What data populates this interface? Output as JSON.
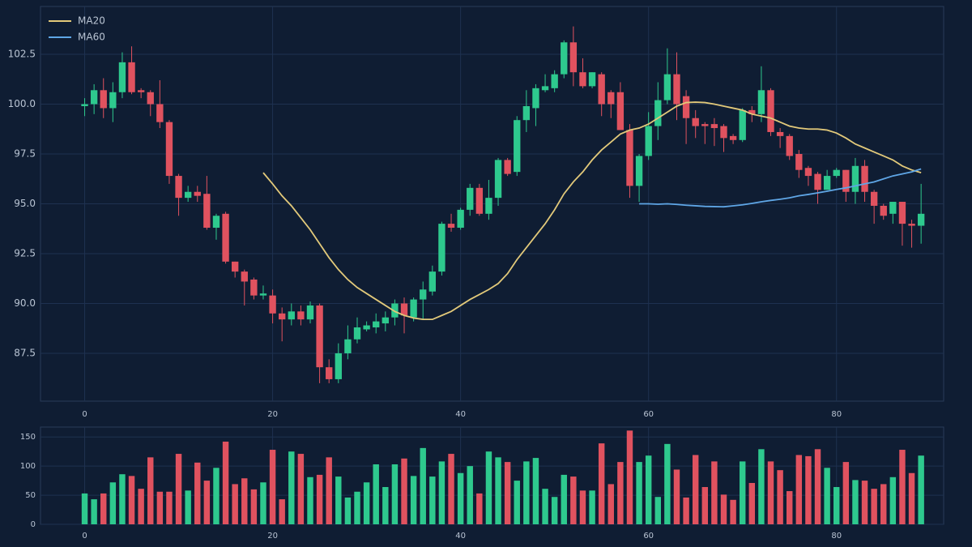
{
  "chart_data": {
    "type": "candlestick",
    "up_color": "#2ec98e",
    "down_color": "#e0525f",
    "grid": true,
    "legend": "upper left",
    "x": [
      0,
      1,
      2,
      3,
      4,
      5,
      6,
      7,
      8,
      9,
      10,
      11,
      12,
      13,
      14,
      15,
      16,
      17,
      18,
      19,
      20,
      21,
      22,
      23,
      24,
      25,
      26,
      27,
      28,
      29,
      30,
      31,
      32,
      33,
      34,
      35,
      36,
      37,
      38,
      39,
      40,
      41,
      42,
      43,
      44,
      45,
      46,
      47,
      48,
      49,
      50,
      51,
      52,
      53,
      54,
      55,
      56,
      57,
      58,
      59,
      60,
      61,
      62,
      63,
      64,
      65,
      66,
      67,
      68,
      69,
      70,
      71,
      72,
      73,
      74,
      75,
      76,
      77,
      78,
      79,
      80,
      81,
      82,
      83,
      84,
      85,
      86,
      87,
      88,
      89
    ],
    "open": [
      99.9,
      100.0,
      100.7,
      99.8,
      100.6,
      102.1,
      100.7,
      100.6,
      100.0,
      99.1,
      96.4,
      95.3,
      95.6,
      95.5,
      93.8,
      94.5,
      92.1,
      91.6,
      91.2,
      90.4,
      90.4,
      89.5,
      89.2,
      89.6,
      89.2,
      89.9,
      86.8,
      86.2,
      87.5,
      88.2,
      88.7,
      88.8,
      89.0,
      89.3,
      90.0,
      89.3,
      90.2,
      90.6,
      91.6,
      94.0,
      93.8,
      94.7,
      95.8,
      94.5,
      95.3,
      97.2,
      96.6,
      99.2,
      99.8,
      100.7,
      100.8,
      101.5,
      103.1,
      101.6,
      100.9,
      101.5,
      100.6,
      100.6,
      98.7,
      95.9,
      97.4,
      98.9,
      100.2,
      101.5,
      100.4,
      99.3,
      99.0,
      99.0,
      98.9,
      98.4,
      98.2,
      99.7,
      99.5,
      100.7,
      98.6,
      98.4,
      97.5,
      96.8,
      96.5,
      95.7,
      96.4,
      96.7,
      95.6,
      96.9,
      95.6,
      94.9,
      94.5,
      95.1,
      94.0,
      93.9
    ],
    "high": [
      100.3,
      101.0,
      101.3,
      101.1,
      102.6,
      102.9,
      100.8,
      100.7,
      101.2,
      99.2,
      96.5,
      95.9,
      95.9,
      96.4,
      94.5,
      94.6,
      92.1,
      91.7,
      91.3,
      90.9,
      90.7,
      89.8,
      90.0,
      89.9,
      90.1,
      90.0,
      87.2,
      88.0,
      88.9,
      89.3,
      89.1,
      89.5,
      89.6,
      90.2,
      90.3,
      90.3,
      91.1,
      91.9,
      94.1,
      94.5,
      94.8,
      96.0,
      96.0,
      96.2,
      97.3,
      97.3,
      99.4,
      100.7,
      101.0,
      101.5,
      101.7,
      103.2,
      103.9,
      102.3,
      101.6,
      101.6,
      100.7,
      101.1,
      99.0,
      97.5,
      99.6,
      101.1,
      102.8,
      102.6,
      100.7,
      99.7,
      99.1,
      99.3,
      99.0,
      98.5,
      99.8,
      99.9,
      101.9,
      100.8,
      98.8,
      98.5,
      97.7,
      96.9,
      96.6,
      96.7,
      96.8,
      96.7,
      97.3,
      97.2,
      95.7,
      95.0,
      95.1,
      95.1,
      94.2,
      96.0
    ],
    "low": [
      99.4,
      99.5,
      99.3,
      99.1,
      100.3,
      100.5,
      100.3,
      99.4,
      98.8,
      96.0,
      94.4,
      95.1,
      95.1,
      93.7,
      93.2,
      92.0,
      91.3,
      89.9,
      90.2,
      90.2,
      89.0,
      88.1,
      88.9,
      88.9,
      89.0,
      86.0,
      86.0,
      86.0,
      87.2,
      88.0,
      88.6,
      88.5,
      88.6,
      88.9,
      88.5,
      89.1,
      89.2,
      90.4,
      91.4,
      93.6,
      93.7,
      94.4,
      94.4,
      94.2,
      94.9,
      96.4,
      96.4,
      98.6,
      98.9,
      100.6,
      100.6,
      101.3,
      100.9,
      100.8,
      100.8,
      99.4,
      99.3,
      98.7,
      95.3,
      95.1,
      97.2,
      98.2,
      100.0,
      99.2,
      98.0,
      98.3,
      98.0,
      97.9,
      97.6,
      98.0,
      98.1,
      99.1,
      99.1,
      98.4,
      97.8,
      97.2,
      96.3,
      95.9,
      95.0,
      95.7,
      96.3,
      95.1,
      95.0,
      95.1,
      94.0,
      94.2,
      94.0,
      92.9,
      92.8,
      93.0
    ],
    "close": [
      100.0,
      100.7,
      99.8,
      100.6,
      102.1,
      100.6,
      100.6,
      100.0,
      99.1,
      96.4,
      95.3,
      95.6,
      95.4,
      93.8,
      94.4,
      92.1,
      91.6,
      91.1,
      90.4,
      90.5,
      89.5,
      89.2,
      89.6,
      89.2,
      89.9,
      86.8,
      86.2,
      87.5,
      88.2,
      88.8,
      88.9,
      89.1,
      89.3,
      90.0,
      89.4,
      90.2,
      90.7,
      91.6,
      94.0,
      93.8,
      94.7,
      95.8,
      94.5,
      95.3,
      97.2,
      96.5,
      99.2,
      99.9,
      100.8,
      100.9,
      101.5,
      103.1,
      101.6,
      100.9,
      101.6,
      100.0,
      100.0,
      98.7,
      95.9,
      97.4,
      98.9,
      100.2,
      101.5,
      100.0,
      99.3,
      98.9,
      98.9,
      98.8,
      98.3,
      98.2,
      99.7,
      99.5,
      100.7,
      98.6,
      98.4,
      97.4,
      96.7,
      96.4,
      95.7,
      96.4,
      96.7,
      95.6,
      96.9,
      95.6,
      94.9,
      94.4,
      95.1,
      94.0,
      93.9,
      94.5
    ],
    "volume": [
      53,
      43,
      53,
      72,
      86,
      83,
      61,
      115,
      56,
      56,
      121,
      58,
      106,
      75,
      97,
      142,
      69,
      79,
      60,
      72,
      128,
      43,
      125,
      121,
      81,
      85,
      115,
      82,
      46,
      56,
      72,
      103,
      64,
      103,
      113,
      83,
      131,
      82,
      108,
      121,
      88,
      100,
      53,
      125,
      115,
      107,
      75,
      108,
      114,
      61,
      47,
      85,
      82,
      58,
      58,
      139,
      69,
      107,
      161,
      107,
      118,
      47,
      138,
      94,
      46,
      119,
      64,
      108,
      51,
      42,
      108,
      71,
      129,
      108,
      93,
      57,
      119,
      117,
      129,
      97,
      64,
      107,
      76,
      75,
      61,
      69,
      81,
      128,
      88,
      118
    ],
    "series": [
      {
        "name": "MA20",
        "color": "#e2c97a",
        "values": [
          null,
          null,
          null,
          null,
          null,
          null,
          null,
          null,
          null,
          null,
          null,
          null,
          null,
          null,
          null,
          null,
          null,
          null,
          null,
          96.56,
          96.0,
          95.4,
          94.9,
          94.3,
          93.7,
          93.0,
          92.3,
          91.7,
          91.2,
          90.8,
          90.5,
          90.2,
          89.9,
          89.6,
          89.4,
          89.27,
          89.2,
          89.2,
          89.4,
          89.6,
          89.9,
          90.2,
          90.45,
          90.7,
          91.0,
          91.5,
          92.2,
          92.8,
          93.4,
          94.0,
          94.7,
          95.5,
          96.1,
          96.6,
          97.2,
          97.7,
          98.1,
          98.5,
          98.7,
          98.8,
          99.0,
          99.3,
          99.6,
          99.9,
          100.08,
          100.1,
          100.08,
          100.0,
          99.9,
          99.8,
          99.7,
          99.5,
          99.4,
          99.3,
          99.1,
          98.9,
          98.8,
          98.75,
          98.75,
          98.7,
          98.55,
          98.3,
          98.0,
          97.8,
          97.6,
          97.4,
          97.2,
          96.9,
          96.7,
          96.56
        ]
      },
      {
        "name": "MA60",
        "color": "#5fa6e6",
        "values": [
          null,
          null,
          null,
          null,
          null,
          null,
          null,
          null,
          null,
          null,
          null,
          null,
          null,
          null,
          null,
          null,
          null,
          null,
          null,
          null,
          null,
          null,
          null,
          null,
          null,
          null,
          null,
          null,
          null,
          null,
          null,
          null,
          null,
          null,
          null,
          null,
          null,
          null,
          null,
          null,
          null,
          null,
          null,
          null,
          null,
          null,
          null,
          null,
          null,
          null,
          null,
          null,
          null,
          null,
          null,
          null,
          null,
          null,
          null,
          95.0,
          95.0,
          94.98,
          95.0,
          94.97,
          94.93,
          94.9,
          94.87,
          94.86,
          94.85,
          94.9,
          94.95,
          95.02,
          95.1,
          95.17,
          95.23,
          95.3,
          95.4,
          95.47,
          95.55,
          95.63,
          95.72,
          95.8,
          95.9,
          96.0,
          96.1,
          96.25,
          96.4,
          96.5,
          96.6,
          96.75
        ]
      }
    ],
    "xlim": [
      -4.7,
      91.4
    ],
    "xticks": [
      0,
      20,
      40,
      60,
      80
    ],
    "ylim": [
      85.1,
      104.9
    ],
    "yticks": [
      87.5,
      {
        "value": 90,
        "label": "90.0"
      },
      92.5,
      {
        "value": 95,
        "label": "95.0"
      },
      97.5,
      {
        "value": 100,
        "label": "100.0"
      },
      102.5
    ],
    "volume_ylim": [
      0,
      167
    ],
    "volume_yticks": [
      0,
      50,
      100,
      150
    ]
  }
}
